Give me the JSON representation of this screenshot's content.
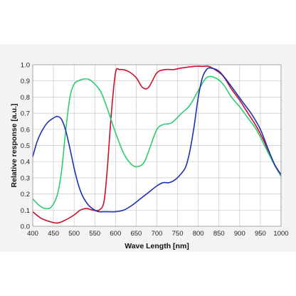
{
  "chart_data": {
    "type": "line",
    "title": "",
    "xlabel": "Wave Length [nm]",
    "ylabel": "Relative response  [a.u.]",
    "xlim": [
      400,
      1000
    ],
    "ylim": [
      0.0,
      1.0
    ],
    "xticks": [
      "400",
      "450",
      "500",
      "550",
      "600",
      "650",
      "700",
      "750",
      "800",
      "850",
      "900",
      "950",
      "1000"
    ],
    "yticks": [
      "0.0",
      "0.1",
      "0.2",
      "0.3",
      "0.4",
      "0.5",
      "0.6",
      "0.7",
      "0.8",
      "0.9",
      "1.0"
    ],
    "grid": true,
    "legend": "none",
    "series": [
      {
        "color": "#c8102e",
        "x": [
          400,
          420,
          440,
          460,
          480,
          500,
          515,
          530,
          545,
          560,
          572,
          580,
          590,
          600,
          610,
          630,
          650,
          665,
          680,
          700,
          720,
          740,
          760,
          790,
          810,
          825,
          840,
          860,
          880,
          900,
          920,
          940,
          960,
          980,
          1000
        ],
        "y": [
          0.09,
          0.05,
          0.03,
          0.02,
          0.04,
          0.07,
          0.1,
          0.11,
          0.1,
          0.1,
          0.15,
          0.35,
          0.7,
          0.95,
          0.97,
          0.96,
          0.92,
          0.86,
          0.86,
          0.95,
          0.97,
          0.97,
          0.98,
          0.99,
          0.99,
          0.99,
          0.97,
          0.93,
          0.85,
          0.78,
          0.7,
          0.62,
          0.52,
          0.4,
          0.31
        ]
      },
      {
        "color": "#2ecc71",
        "x": [
          400,
          415,
          430,
          445,
          460,
          470,
          480,
          490,
          500,
          510,
          520,
          535,
          550,
          565,
          580,
          600,
          620,
          640,
          655,
          670,
          685,
          700,
          715,
          735,
          760,
          780,
          800,
          820,
          840,
          860,
          880,
          900,
          920,
          940,
          960,
          980,
          1000
        ],
        "y": [
          0.17,
          0.13,
          0.11,
          0.12,
          0.2,
          0.35,
          0.6,
          0.8,
          0.88,
          0.9,
          0.91,
          0.91,
          0.88,
          0.83,
          0.73,
          0.58,
          0.45,
          0.38,
          0.37,
          0.4,
          0.5,
          0.6,
          0.63,
          0.64,
          0.7,
          0.75,
          0.84,
          0.92,
          0.92,
          0.88,
          0.8,
          0.74,
          0.67,
          0.6,
          0.5,
          0.4,
          0.31
        ]
      },
      {
        "color": "#1f2fb4",
        "x": [
          400,
          410,
          420,
          435,
          450,
          460,
          470,
          480,
          490,
          500,
          510,
          520,
          535,
          550,
          560,
          570,
          585,
          600,
          620,
          640,
          660,
          680,
          700,
          715,
          730,
          745,
          760,
          770,
          780,
          790,
          800,
          810,
          820,
          830,
          850,
          870,
          890,
          910,
          930,
          950,
          970,
          985,
          1000
        ],
        "y": [
          0.43,
          0.52,
          0.58,
          0.64,
          0.67,
          0.68,
          0.66,
          0.59,
          0.48,
          0.36,
          0.26,
          0.19,
          0.13,
          0.1,
          0.09,
          0.09,
          0.09,
          0.09,
          0.1,
          0.13,
          0.17,
          0.21,
          0.25,
          0.27,
          0.27,
          0.29,
          0.33,
          0.37,
          0.47,
          0.62,
          0.8,
          0.92,
          0.97,
          0.98,
          0.96,
          0.9,
          0.83,
          0.76,
          0.69,
          0.6,
          0.47,
          0.38,
          0.32
        ]
      }
    ]
  }
}
